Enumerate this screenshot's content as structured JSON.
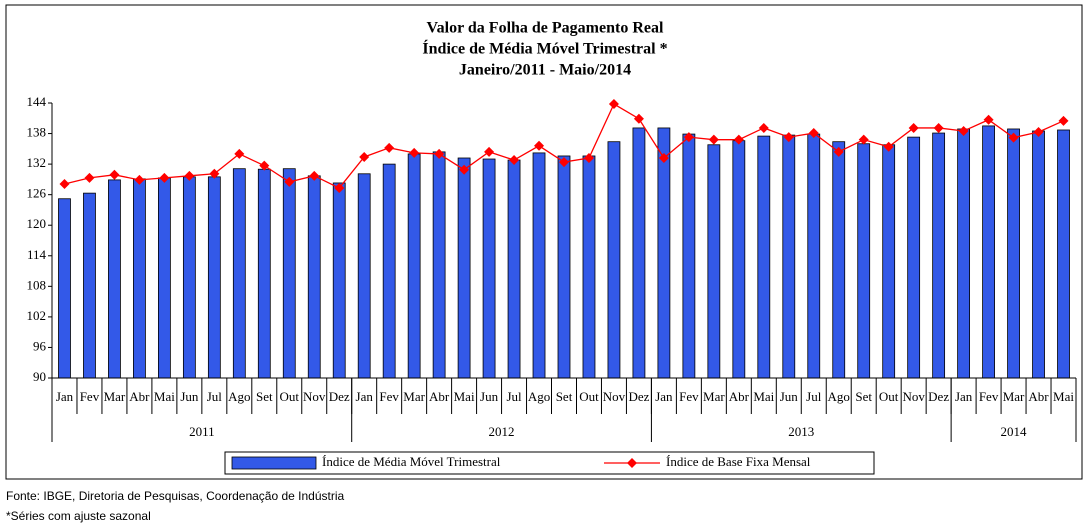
{
  "chart_data": {
    "type": "bar-line",
    "title": [
      "Valor da Folha de Pagamento Real",
      "Índice de Média Móvel Trimestral *",
      "Janeiro/2011 - Maio/2014"
    ],
    "categories": [
      [
        "Jan",
        "2011"
      ],
      [
        "Fev",
        "2011"
      ],
      [
        "Mar",
        "2011"
      ],
      [
        "Abr",
        "2011"
      ],
      [
        "Mai",
        "2011"
      ],
      [
        "Jun",
        "2011"
      ],
      [
        "Jul",
        "2011"
      ],
      [
        "Ago",
        "2011"
      ],
      [
        "Set",
        "2011"
      ],
      [
        "Out",
        "2011"
      ],
      [
        "Nov",
        "2011"
      ],
      [
        "Dez",
        "2011"
      ],
      [
        "Jan",
        "2012"
      ],
      [
        "Fev",
        "2012"
      ],
      [
        "Mar",
        "2012"
      ],
      [
        "Abr",
        "2012"
      ],
      [
        "Mai",
        "2012"
      ],
      [
        "Jun",
        "2012"
      ],
      [
        "Jul",
        "2012"
      ],
      [
        "Ago",
        "2012"
      ],
      [
        "Set",
        "2012"
      ],
      [
        "Out",
        "2012"
      ],
      [
        "Nov",
        "2012"
      ],
      [
        "Dez",
        "2012"
      ],
      [
        "Jan",
        "2013"
      ],
      [
        "Fev",
        "2013"
      ],
      [
        "Mar",
        "2013"
      ],
      [
        "Abr",
        "2013"
      ],
      [
        "Mai",
        "2013"
      ],
      [
        "Jun",
        "2013"
      ],
      [
        "Jul",
        "2013"
      ],
      [
        "Ago",
        "2013"
      ],
      [
        "Set",
        "2013"
      ],
      [
        "Out",
        "2013"
      ],
      [
        "Nov",
        "2013"
      ],
      [
        "Dez",
        "2013"
      ],
      [
        "Jan",
        "2014"
      ],
      [
        "Fev",
        "2014"
      ],
      [
        "Mar",
        "2014"
      ],
      [
        "Abr",
        "2014"
      ],
      [
        "Mai",
        "2014"
      ]
    ],
    "series": [
      {
        "name": "Índice de Média Móvel Trimestral",
        "type": "bar",
        "color": "#3359e8",
        "values": [
          125.2,
          126.3,
          128.9,
          129.1,
          129.3,
          129.5,
          129.5,
          131.1,
          131.0,
          131.1,
          129.7,
          128.3,
          130.1,
          132.0,
          134.0,
          134.4,
          133.2,
          133.0,
          132.8,
          134.2,
          133.6,
          133.6,
          136.4,
          139.1,
          139.1,
          137.9,
          135.8,
          136.6,
          137.5,
          137.7,
          137.9,
          136.4,
          136.0,
          135.8,
          137.3,
          138.1,
          138.9,
          139.5,
          138.9,
          138.5,
          138.7
        ]
      },
      {
        "name": "Índice de Base Fixa Mensal",
        "type": "line",
        "color": "#ff0000",
        "values": [
          128.1,
          129.3,
          129.9,
          128.9,
          129.3,
          129.7,
          130.1,
          134.0,
          131.7,
          128.5,
          129.7,
          127.3,
          133.4,
          135.2,
          134.2,
          134.0,
          130.9,
          134.4,
          132.8,
          135.6,
          132.4,
          133.2,
          143.8,
          140.9,
          133.2,
          137.3,
          136.8,
          136.8,
          139.1,
          137.3,
          138.1,
          134.4,
          136.8,
          135.4,
          139.1,
          139.1,
          138.5,
          140.7,
          137.2,
          138.3,
          140.5
        ]
      }
    ],
    "ylim": [
      90,
      144
    ],
    "yticks": [
      90,
      96,
      102,
      108,
      114,
      120,
      126,
      132,
      138,
      144
    ],
    "grid": false,
    "notes": [
      "Fonte: IBGE, Diretoria de Pesquisas, Coordenação de Indústria",
      "*Séries com ajuste sazonal"
    ]
  }
}
